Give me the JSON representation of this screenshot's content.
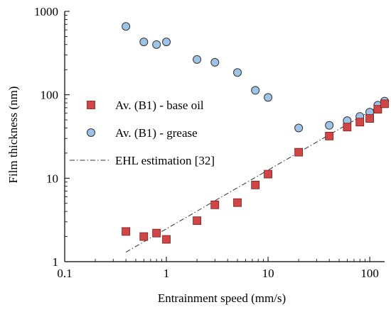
{
  "chart_data": {
    "type": "scatter",
    "xlabel": "Entrainment speed (mm/s)",
    "ylabel": "Film thickness (nm)",
    "x_scale": "log",
    "y_scale": "log",
    "xlim": [
      0.1,
      140
    ],
    "ylim": [
      1,
      1000
    ],
    "x_ticks": [
      0.1,
      1,
      10,
      100
    ],
    "x_tick_labels": [
      "0.1",
      "1",
      "10",
      "100"
    ],
    "y_ticks": [
      1,
      10,
      100,
      1000
    ],
    "y_tick_labels": [
      "1",
      "10",
      "100",
      "1000"
    ],
    "grid": false,
    "legend_position": "center-left",
    "series": [
      {
        "name": "Av. (B1) - base oil",
        "marker": "square",
        "color": "#d04545",
        "edge_color": "#7a1e1e",
        "x": [
          0.4,
          0.6,
          0.8,
          1,
          2,
          3,
          5,
          7.5,
          10,
          20,
          40,
          60,
          80,
          100,
          120,
          140
        ],
        "y": [
          2.3,
          2.0,
          2.2,
          1.85,
          3.1,
          4.8,
          5.1,
          8.3,
          11.2,
          20.5,
          32,
          41,
          47,
          52,
          67,
          78
        ]
      },
      {
        "name": "Av. (B1) - grease",
        "marker": "circle",
        "color": "#9dc3e6",
        "edge_color": "#333333",
        "x": [
          0.4,
          0.6,
          0.8,
          1,
          2,
          3,
          5,
          7.5,
          10,
          20,
          40,
          60,
          80,
          100,
          120,
          140
        ],
        "y": [
          660,
          430,
          400,
          430,
          265,
          245,
          185,
          113,
          93,
          40,
          43,
          49,
          55,
          62,
          75,
          84
        ]
      },
      {
        "name": "EHL estimation [32]",
        "line_style": "dash-dot",
        "color": "#333333",
        "x": [
          0.4,
          140
        ],
        "y": [
          1.3,
          80
        ]
      }
    ]
  }
}
